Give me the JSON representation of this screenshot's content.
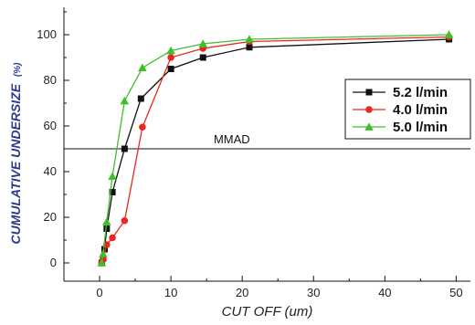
{
  "chart_data": {
    "type": "line",
    "title": "",
    "xlabel": "CUT OFF (um)",
    "ylabel": "CUMULATIVE UNDERSIZE",
    "ylabel_unit": "(%)",
    "xlim": [
      -5,
      52
    ],
    "ylim": [
      -8,
      112
    ],
    "xticks": [
      0,
      10,
      20,
      30,
      40,
      50
    ],
    "yticks": [
      0,
      20,
      40,
      60,
      80,
      100
    ],
    "xtick_labels": [
      "0",
      "10",
      "20",
      "30",
      "40",
      "50"
    ],
    "ytick_labels": [
      "0",
      "20",
      "40",
      "60",
      "80",
      "100"
    ],
    "grid": false,
    "legend_position": "right",
    "reference_line": {
      "y": 50,
      "label": "MMAD"
    },
    "series": [
      {
        "name": "5.2 l/min",
        "color": "#111111",
        "marker": "square",
        "points": [
          [
            0.3,
            0
          ],
          [
            0.5,
            2
          ],
          [
            0.7,
            6
          ],
          [
            1.0,
            15
          ],
          [
            1.8,
            31
          ],
          [
            3.5,
            50
          ],
          [
            5.8,
            72
          ],
          [
            10,
            85
          ],
          [
            14.5,
            90
          ],
          [
            21,
            94.5
          ],
          [
            49,
            98
          ]
        ]
      },
      {
        "name": "4.0 l/min",
        "color": "#e8281e",
        "marker": "circle",
        "points": [
          [
            0.3,
            0
          ],
          [
            0.5,
            2
          ],
          [
            1.0,
            8
          ],
          [
            1.8,
            11
          ],
          [
            3.5,
            18.5
          ],
          [
            6.0,
            59.5
          ],
          [
            10,
            90
          ],
          [
            14.5,
            94
          ],
          [
            21,
            97
          ],
          [
            49,
            99
          ]
        ]
      },
      {
        "name": "5.0 l/min",
        "color": "#3fbf2a",
        "marker": "triangle",
        "points": [
          [
            0.3,
            0
          ],
          [
            0.5,
            4
          ],
          [
            1.0,
            18
          ],
          [
            1.8,
            38
          ],
          [
            3.5,
            71
          ],
          [
            6.0,
            85.5
          ],
          [
            10,
            93
          ],
          [
            14.5,
            96
          ],
          [
            21,
            98
          ],
          [
            49,
            100
          ]
        ]
      }
    ]
  }
}
